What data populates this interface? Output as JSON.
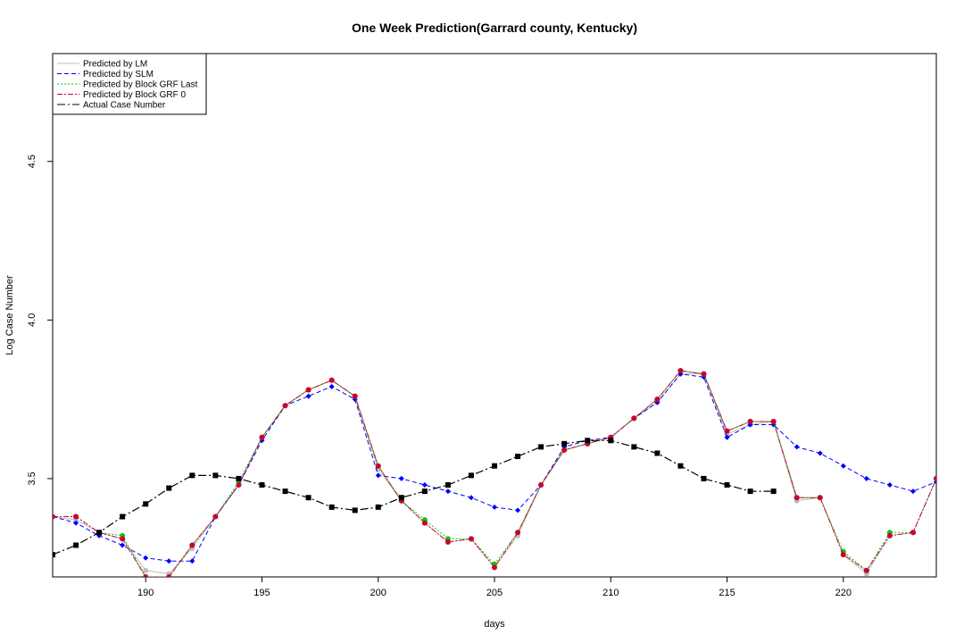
{
  "chart_data": {
    "type": "line",
    "title": "One Week Prediction(Garrard county, Kentucky)",
    "xlabel": "days",
    "ylabel": "Log Case Number",
    "xlim": [
      186,
      224
    ],
    "ylim": [
      3.19,
      4.84
    ],
    "x_ticks": [
      190,
      195,
      200,
      205,
      210,
      215,
      220
    ],
    "y_ticks": [
      3.5,
      4.0,
      4.5
    ],
    "x_tick_labels": [
      "190",
      "195",
      "200",
      "205",
      "210",
      "215",
      "220"
    ],
    "y_tick_labels": [
      "3.5",
      "4.0",
      "4.5"
    ],
    "grid": false,
    "legend_position": "top-left",
    "series": [
      {
        "name": "Predicted by LM",
        "color": "#bebebe",
        "line_style": "solid",
        "marker": "circle",
        "x": [
          186,
          187,
          188,
          189,
          190,
          191,
          192,
          193,
          194,
          195,
          196,
          197,
          198,
          199,
          200,
          201,
          202,
          203,
          204,
          205,
          206,
          207,
          208,
          209,
          210,
          211,
          212,
          213,
          214,
          215,
          216,
          217,
          218,
          219,
          220,
          221,
          222,
          223,
          224
        ],
        "values": [
          3.38,
          3.37,
          3.33,
          3.31,
          3.21,
          3.2,
          3.28,
          3.38,
          3.48,
          3.63,
          3.73,
          3.78,
          3.81,
          3.76,
          3.53,
          3.43,
          3.36,
          3.3,
          3.31,
          3.22,
          3.32,
          3.48,
          3.59,
          3.61,
          3.63,
          3.69,
          3.74,
          3.83,
          3.83,
          3.64,
          3.67,
          3.68,
          3.43,
          3.44,
          3.26,
          3.2,
          3.32,
          3.33,
          3.5
        ]
      },
      {
        "name": "Predicted by SLM",
        "color": "#0000ff",
        "line_style": "dashed",
        "marker": "diamond",
        "x": [
          186,
          187,
          188,
          189,
          190,
          191,
          192,
          193,
          194,
          195,
          196,
          197,
          198,
          199,
          200,
          201,
          202,
          203,
          204,
          205,
          206,
          207,
          208,
          209,
          210,
          211,
          212,
          213,
          214,
          215,
          216,
          217,
          218,
          219,
          220,
          221,
          222,
          223,
          224
        ],
        "values": [
          3.38,
          3.36,
          3.32,
          3.29,
          3.25,
          3.24,
          3.24,
          3.38,
          3.48,
          3.62,
          3.73,
          3.76,
          3.79,
          3.75,
          3.51,
          3.5,
          3.48,
          3.46,
          3.44,
          3.41,
          3.4,
          3.48,
          3.6,
          3.62,
          3.63,
          3.69,
          3.74,
          3.83,
          3.82,
          3.63,
          3.67,
          3.67,
          3.6,
          3.58,
          3.54,
          3.5,
          3.48,
          3.46,
          3.49
        ]
      },
      {
        "name": "Predicted by Block GRF Last",
        "color": "#00cc00",
        "line_style": "dotted",
        "marker": "circle",
        "x": [
          186,
          187,
          188,
          189,
          190,
          191,
          192,
          193,
          194,
          195,
          196,
          197,
          198,
          199,
          200,
          201,
          202,
          203,
          204,
          205,
          206,
          207,
          208,
          209,
          210,
          211,
          212,
          213,
          214,
          215,
          216,
          217,
          218,
          219,
          220,
          221,
          222,
          223,
          224
        ],
        "values": [
          3.38,
          3.38,
          3.33,
          3.32,
          3.19,
          3.19,
          3.29,
          3.38,
          3.49,
          3.63,
          3.73,
          3.78,
          3.81,
          3.76,
          3.54,
          3.43,
          3.37,
          3.31,
          3.31,
          3.23,
          3.33,
          3.48,
          3.59,
          3.61,
          3.63,
          3.69,
          3.75,
          3.84,
          3.83,
          3.65,
          3.68,
          3.68,
          3.44,
          3.44,
          3.27,
          3.21,
          3.33,
          3.33,
          3.5
        ]
      },
      {
        "name": "Predicted by Block GRF 0",
        "color": "#cc0033",
        "line_style": "dashdot",
        "marker": "circle",
        "x": [
          186,
          187,
          188,
          189,
          190,
          191,
          192,
          193,
          194,
          195,
          196,
          197,
          198,
          199,
          200,
          201,
          202,
          203,
          204,
          205,
          206,
          207,
          208,
          209,
          210,
          211,
          212,
          213,
          214,
          215,
          216,
          217,
          218,
          219,
          220,
          221,
          222,
          223,
          224
        ],
        "values": [
          3.38,
          3.38,
          3.33,
          3.31,
          3.19,
          3.19,
          3.29,
          3.38,
          3.48,
          3.63,
          3.73,
          3.78,
          3.81,
          3.76,
          3.54,
          3.43,
          3.36,
          3.3,
          3.31,
          3.22,
          3.33,
          3.48,
          3.59,
          3.61,
          3.63,
          3.69,
          3.75,
          3.84,
          3.83,
          3.65,
          3.68,
          3.68,
          3.44,
          3.44,
          3.26,
          3.21,
          3.32,
          3.33,
          3.5
        ]
      },
      {
        "name": "Actual Case Number",
        "color": "#000000",
        "line_style": "longdash",
        "marker": "square",
        "x": [
          186,
          187,
          188,
          189,
          190,
          191,
          192,
          193,
          194,
          195,
          196,
          197,
          198,
          199,
          200,
          201,
          202,
          203,
          204,
          205,
          206,
          207,
          208,
          209,
          210,
          211,
          212,
          213,
          214,
          215,
          216,
          217
        ],
        "values": [
          3.26,
          3.29,
          3.33,
          3.38,
          3.42,
          3.47,
          3.51,
          3.51,
          3.5,
          3.48,
          3.46,
          3.44,
          3.41,
          3.4,
          3.41,
          3.44,
          3.46,
          3.48,
          3.51,
          3.54,
          3.57,
          3.6,
          3.61,
          3.62,
          3.62,
          3.6,
          3.58,
          3.54,
          3.5,
          3.48,
          3.46,
          3.46
        ]
      }
    ]
  }
}
